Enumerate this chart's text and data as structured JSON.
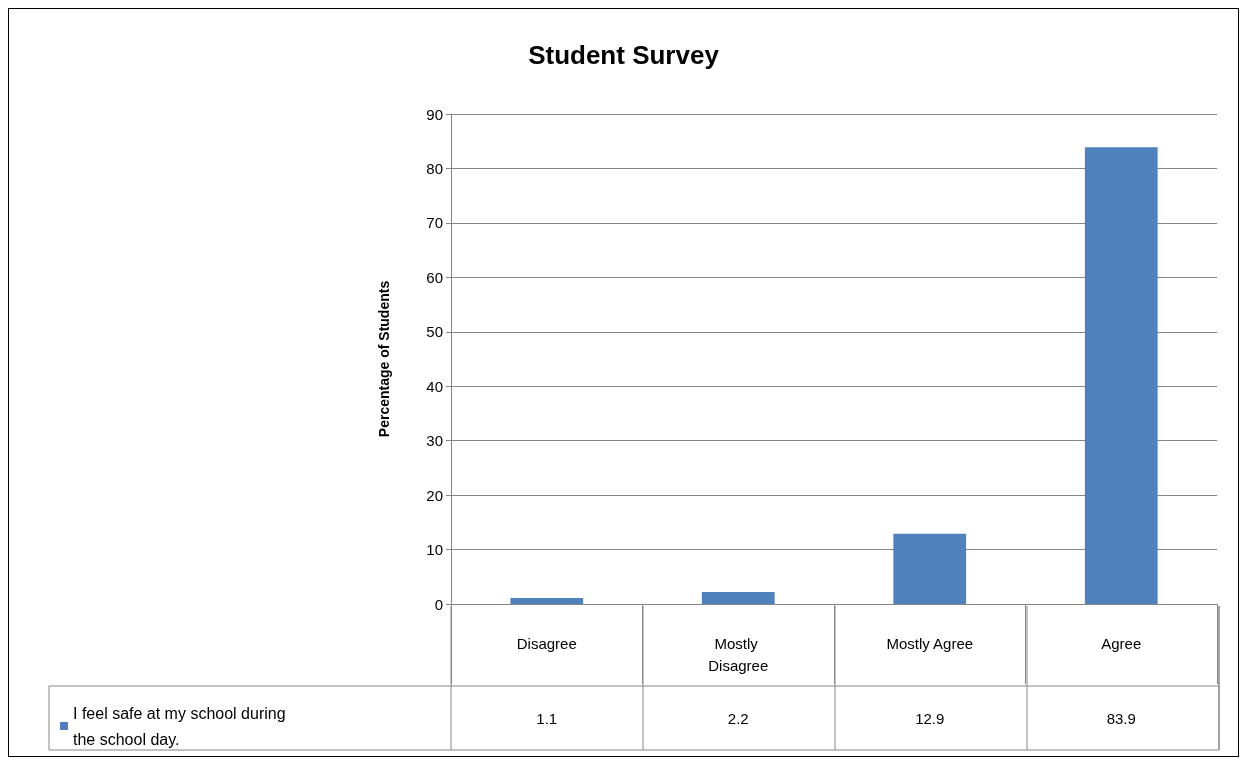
{
  "chart_data": {
    "type": "bar",
    "title": "Student Survey",
    "ylabel": "Percentage of Students",
    "categories": [
      "Disagree",
      "Mostly Disagree",
      "Mostly Agree",
      "Agree"
    ],
    "series": [
      {
        "name": "I feel safe at my school during the school day.",
        "color": "#4f81bd",
        "values": [
          1.1,
          2.2,
          12.9,
          83.9
        ]
      }
    ],
    "ylim": [
      0,
      90
    ],
    "yticks": [
      0,
      10,
      20,
      30,
      40,
      50,
      60,
      70,
      80,
      90
    ],
    "grid": "y",
    "legend": "bottom left",
    "data_labels": true
  }
}
